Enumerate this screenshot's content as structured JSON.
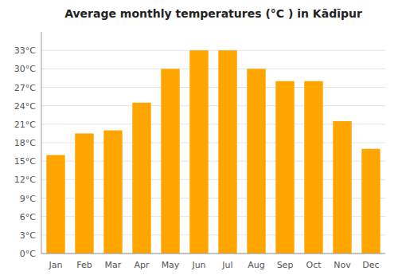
{
  "chart_data": {
    "type": "bar",
    "title": "Average monthly temperatures (°C ) in Kādīpur",
    "categories": [
      "Jan",
      "Feb",
      "Mar",
      "Apr",
      "May",
      "Jun",
      "Jul",
      "Aug",
      "Sep",
      "Oct",
      "Nov",
      "Dec"
    ],
    "values": [
      16,
      19.5,
      20,
      24.5,
      30,
      33,
      33,
      30,
      28,
      28,
      21.5,
      17
    ],
    "color": "#FFA500",
    "ylim": [
      0,
      36
    ],
    "yticks": [
      {
        "value": 0,
        "label": "0°C"
      },
      {
        "value": 3,
        "label": "3°C"
      },
      {
        "value": 6,
        "label": "6°C"
      },
      {
        "value": 9,
        "label": "9°C"
      },
      {
        "value": 12,
        "label": "12°C"
      },
      {
        "value": 15,
        "label": "15°C"
      },
      {
        "value": 18,
        "label": "18°C"
      },
      {
        "value": 21,
        "label": "21°C"
      },
      {
        "value": 24,
        "label": "24°C"
      },
      {
        "value": 27,
        "label": "27°C"
      },
      {
        "value": 30,
        "label": "30°C"
      },
      {
        "value": 33,
        "label": "33°C"
      }
    ],
    "grid": true
  }
}
